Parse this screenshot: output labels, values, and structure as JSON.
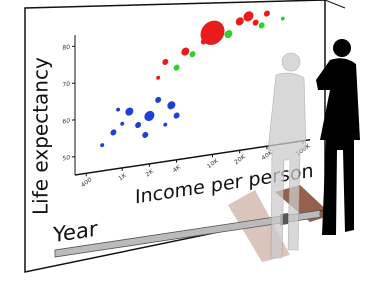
{
  "chart_data": {
    "type": "scatter",
    "y_label": "Life expectancy",
    "x_label": "Income per person",
    "slider_label": "Year",
    "log_x": true,
    "xlim": [
      300,
      120000
    ],
    "ylim": [
      45,
      83
    ],
    "xticks": [
      {
        "value": 400,
        "label": "400"
      },
      {
        "value": 1000,
        "label": "1K"
      },
      {
        "value": 2000,
        "label": "2K"
      },
      {
        "value": 4000,
        "label": "4K"
      },
      {
        "value": 10000,
        "label": "10K"
      },
      {
        "value": 20000,
        "label": "20K"
      },
      {
        "value": 40000,
        "label": "40K"
      },
      {
        "value": 100000,
        "label": "100K"
      }
    ],
    "yticks": [
      50,
      60,
      70,
      80
    ],
    "series": [
      {
        "color": "#1f3fd6",
        "x": [
          600,
          800,
          1000,
          1200,
          1500,
          2000,
          2500,
          3000,
          3500,
          1800,
          900,
          4000
        ],
        "values": [
          52,
          55,
          57,
          60,
          56,
          58,
          62,
          55,
          60,
          53,
          61,
          57
        ],
        "sizes": [
          2,
          3,
          2,
          4,
          3,
          5,
          3,
          2,
          4,
          3,
          2,
          3
        ]
      },
      {
        "color": "#e81c1c",
        "x": [
          3000,
          5000,
          8000,
          10000,
          20000,
          25000,
          40000,
          30000,
          2500
        ],
        "values": [
          72,
          74,
          76,
          78,
          80,
          81,
          81,
          79,
          68
        ],
        "sizes": [
          3,
          4,
          3,
          12,
          4,
          5,
          3,
          3,
          2
        ]
      },
      {
        "color": "#2fd12f",
        "x": [
          4000,
          6000,
          15000,
          35000,
          60000
        ],
        "values": [
          70,
          73,
          77,
          78,
          79
        ],
        "sizes": [
          3,
          3,
          4,
          3,
          2
        ]
      }
    ]
  }
}
